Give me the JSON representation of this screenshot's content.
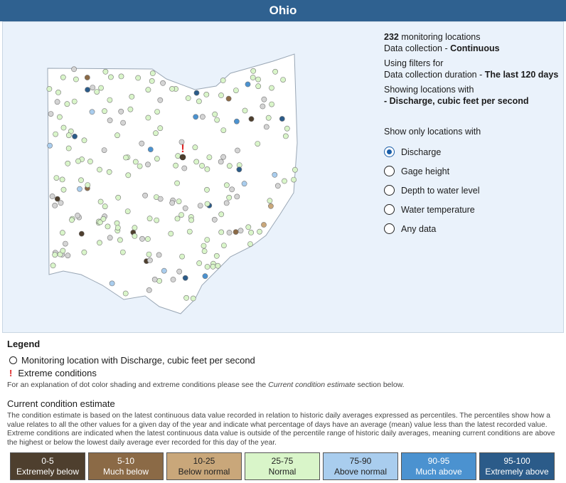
{
  "header": {
    "title": "Ohio"
  },
  "info": {
    "count": "232",
    "count_suffix": "monitoring locations",
    "collection_prefix": "Data collection - ",
    "collection_value": "Continuous",
    "filters_heading": "Using filters for",
    "duration_prefix": "Data collection duration - ",
    "duration_value": "The last 120 days",
    "showing_heading": "Showing locations with",
    "showing_value": "- Discharge, cubic feet per second"
  },
  "filter": {
    "label": "Show only locations with",
    "options": [
      "Discharge",
      "Gage height",
      "Depth to water level",
      "Water temperature",
      "Any data"
    ],
    "selected": 0
  },
  "legend": {
    "title": "Legend",
    "items": [
      "Monitoring location with Discharge, cubic feet per second",
      "Extreme conditions"
    ],
    "note_prefix": "For an explanation of dot color shading and extreme conditions please see the ",
    "note_link": "Current condition estimate",
    "note_suffix": " section below."
  },
  "condition": {
    "title": "Current condition estimate",
    "description": "The condition estimate is based on the latest continuous data value recorded in relation to historic daily averages expressed as percentiles. The percentiles show how a value relates to all the other values for a given day of the year and indicate what percentage of days have an average (mean) value less than the latest recorded value. Extreme conditions are indicated when the latest continuous data value is outside of the percentile range of historic daily averages, meaning current conditions are above the highest or below the lowest daily average ever recorded for this day of the year.",
    "bins": [
      {
        "range": "0-5",
        "label": "Extremely below",
        "color": "#4e3f2e",
        "text": "#ffffff"
      },
      {
        "range": "5-10",
        "label": "Much below",
        "color": "#8b6a46",
        "text": "#ffffff"
      },
      {
        "range": "10-25",
        "label": "Below normal",
        "color": "#c9a77a",
        "text": "#222222"
      },
      {
        "range": "25-75",
        "label": "Normal",
        "color": "#d9f5c9",
        "text": "#222222"
      },
      {
        "range": "75-90",
        "label": "Above normal",
        "color": "#a9cdee",
        "text": "#222222"
      },
      {
        "range": "90-95",
        "label": "Much above",
        "color": "#4b92d0",
        "text": "#ffffff"
      },
      {
        "range": "95-100",
        "label": "Extremely above",
        "color": "#2b5b89",
        "text": "#ffffff"
      }
    ]
  }
}
